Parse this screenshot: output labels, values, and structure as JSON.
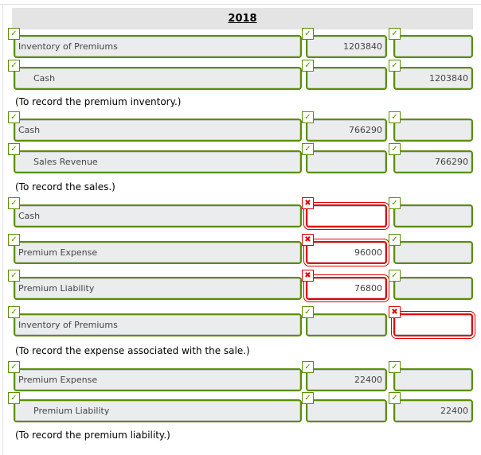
{
  "year": "2018",
  "colors": {
    "correct": "#5a8f00",
    "incorrect": "#e00000"
  },
  "rows": [
    {
      "account": "Inventory of Premiums",
      "indent": false,
      "debit": "1203840",
      "credit": "",
      "status": [
        "correct",
        "correct",
        "correct"
      ]
    },
    {
      "account": "Cash",
      "indent": true,
      "debit": "",
      "credit": "1203840",
      "status": [
        "correct",
        "correct",
        "correct"
      ]
    },
    {
      "account": "Cash",
      "indent": false,
      "debit": "766290",
      "credit": "",
      "status": [
        "correct",
        "correct",
        "correct"
      ]
    },
    {
      "account": "Sales Revenue",
      "indent": true,
      "debit": "",
      "credit": "766290",
      "status": [
        "correct",
        "correct",
        "correct"
      ]
    },
    {
      "account": "Cash",
      "indent": false,
      "debit": "",
      "credit": "",
      "status": [
        "correct",
        "incorrect",
        "correct"
      ]
    },
    {
      "account": "Premium Expense",
      "indent": false,
      "debit": "96000",
      "credit": "",
      "status": [
        "correct",
        "incorrect",
        "correct"
      ]
    },
    {
      "account": "Premium Liability",
      "indent": false,
      "debit": "76800",
      "credit": "",
      "status": [
        "correct",
        "incorrect",
        "correct"
      ]
    },
    {
      "account": "Inventory of Premiums",
      "indent": false,
      "debit": "",
      "credit": "",
      "status": [
        "correct",
        "correct",
        "incorrect"
      ]
    },
    {
      "account": "Premium Expense",
      "indent": false,
      "debit": "22400",
      "credit": "",
      "status": [
        "correct",
        "correct",
        "correct"
      ]
    },
    {
      "account": "Premium Liability",
      "indent": true,
      "debit": "",
      "credit": "22400",
      "status": [
        "correct",
        "correct",
        "correct"
      ]
    }
  ],
  "memos": [
    "(To record the premium inventory.)",
    "(To record the sales.)",
    "(To record the expense associated with the sale.)",
    "(To record the premium liability.)"
  ],
  "icons": {
    "correct": "check-icon",
    "incorrect": "x-icon"
  }
}
